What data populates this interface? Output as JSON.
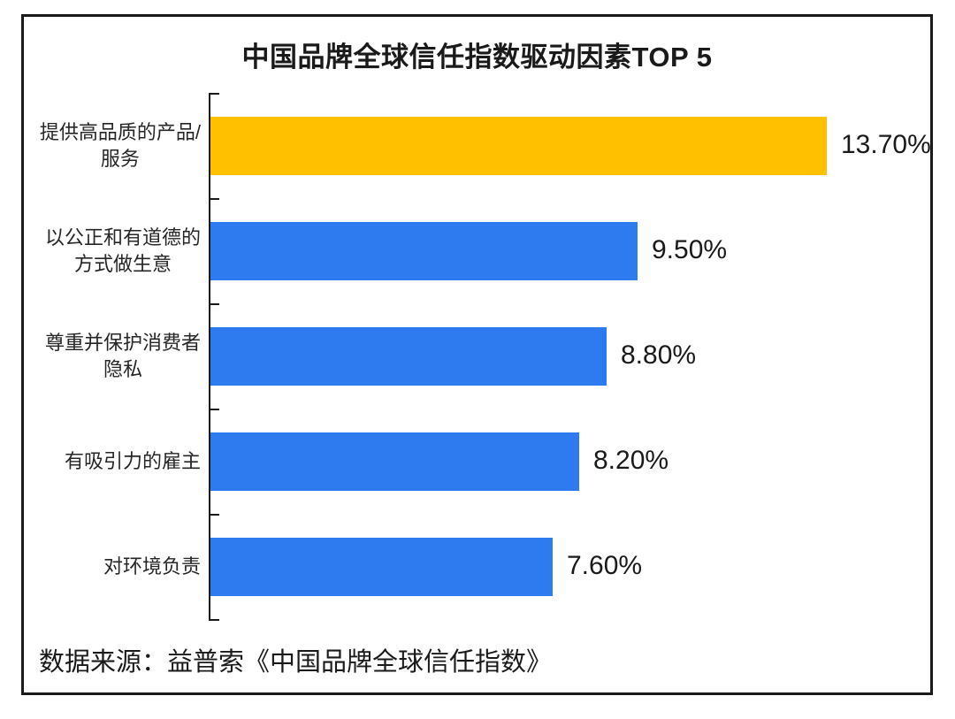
{
  "title": "中国品牌全球信任指数驱动因素TOP 5",
  "source_note": "数据来源：益普索《中国品牌全球信任指数》",
  "colors": {
    "highlight_bar": "#FFC000",
    "default_bar": "#2E7BF0",
    "axis": "#1A1A1A",
    "frame_border": "#1A1A1A",
    "text": "#1A1A1A"
  },
  "chart_data": {
    "type": "bar",
    "orientation": "horizontal",
    "title": "中国品牌全球信任指数驱动因素TOP 5",
    "categories": [
      "提供高品质的产品/\n服务",
      "以公正和有道德的\n方式做生意",
      "尊重并保护消费者\n隐私",
      "有吸引力的雇主",
      "对环境负责"
    ],
    "values": [
      13.7,
      9.5,
      8.8,
      8.2,
      7.6
    ],
    "value_labels": [
      "13.70%",
      "9.50%",
      "8.80%",
      "8.20%",
      "7.60%"
    ],
    "bar_colors": [
      "#FFC000",
      "#2E7BF0",
      "#2E7BF0",
      "#2E7BF0",
      "#2E7BF0"
    ],
    "xlabel": "",
    "ylabel": "",
    "xlim": [
      0,
      16
    ],
    "grid": false,
    "legend": false,
    "source": "数据来源：益普索《中国品牌全球信任指数》"
  }
}
